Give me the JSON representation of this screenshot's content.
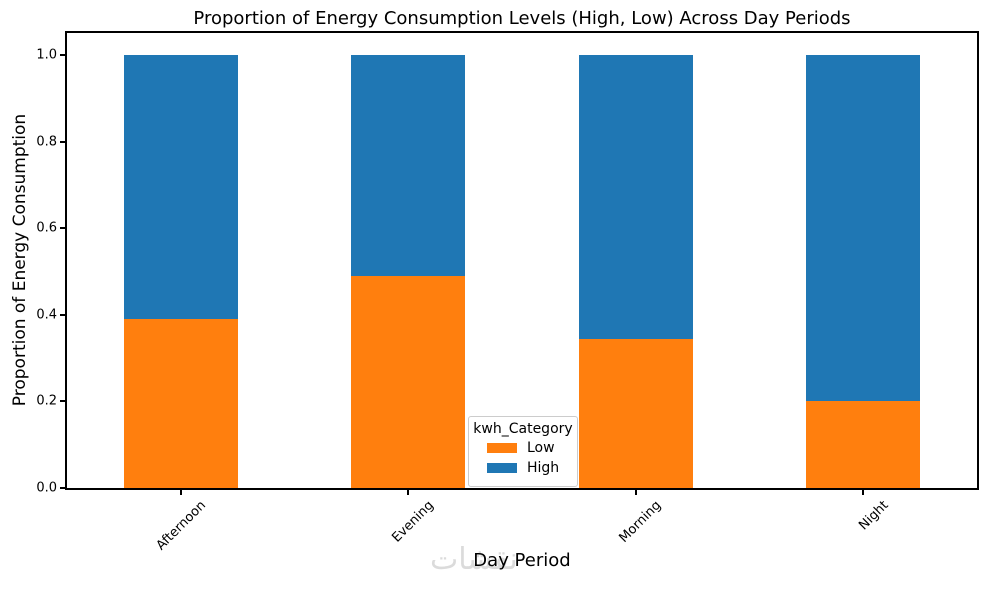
{
  "watermark": "نقشات",
  "chart_data": {
    "type": "bar",
    "subtype": "stacked_proportion",
    "title": "Proportion of Energy Consumption Levels (High, Low) Across Day Periods",
    "xlabel": "Day Period",
    "ylabel": "Proportion of Energy Consumption",
    "categories": [
      "Afternoon",
      "Evening",
      "Morning",
      "Night"
    ],
    "series": [
      {
        "name": "Low",
        "color": "#ff7f0e",
        "values": [
          0.39,
          0.49,
          0.345,
          0.2
        ]
      },
      {
        "name": "High",
        "color": "#1f77b4",
        "values": [
          0.61,
          0.51,
          0.655,
          0.8
        ]
      }
    ],
    "stack_order": "Low bottom, High top",
    "ylim": [
      0,
      1.05
    ],
    "yticks": [
      "0.0",
      "0.2",
      "0.4",
      "0.6",
      "0.8",
      "1.0"
    ],
    "xtick_rotation_deg": 45,
    "grid": false,
    "legend": {
      "title": "kwh_Category",
      "entries": [
        "Low",
        "High"
      ],
      "position": "lower center inside axes"
    },
    "frame_color": "#000000",
    "background_color": "#ffffff"
  }
}
